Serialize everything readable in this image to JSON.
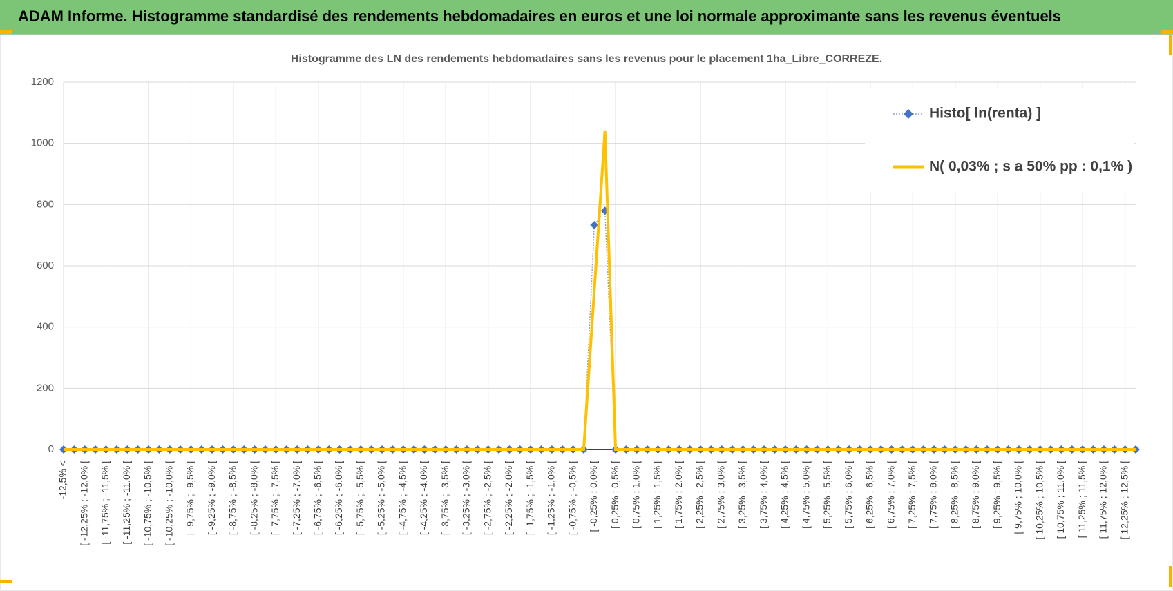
{
  "header": {
    "title": "ADAM Informe. Histogramme standardisé des rendements hebdomadaires en euros et une loi normale approximante sans les revenus éventuels"
  },
  "chart_data": {
    "type": "line",
    "title": "Histogramme des LN des rendements hebdomadaires sans les revenus pour le placement 1ha_Libre_CORREZE.",
    "categories": [
      "-12,5% <",
      null,
      "[ -12,25% ; -12,0% [",
      null,
      "[ -11,75% ; -11,5% [",
      null,
      "[ -11,25% ; -11,0% [",
      null,
      "[ -10,75% ; -10,5% [",
      null,
      "[ -10,25% ; -10,0% [",
      null,
      "[ -9,75% ; -9,5% [",
      null,
      "[ -9,25% ; -9,0% [",
      null,
      "[ -8,75% ; -8,5% [",
      null,
      "[ -8,25% ; -8,0% [",
      null,
      "[ -7,75% ; -7,5% [",
      null,
      "[ -7,25% ; -7,0% [",
      null,
      "[ -6,75% ; -6,5% [",
      null,
      "[ -6,25% ; -6,0% [",
      null,
      "[ -5,75% ; -5,5% [",
      null,
      "[ -5,25% ; -5,0% [",
      null,
      "[ -4,75% ; -4,5% [",
      null,
      "[ -4,25% ; -4,0% [",
      null,
      "[ -3,75% ; -3,5% [",
      null,
      "[ -3,25% ; -3,0% [",
      null,
      "[ -2,75% ; -2,5% [",
      null,
      "[ -2,25% ; -2,0% [",
      null,
      "[ -1,75% ; -1,5% [",
      null,
      "[ -1,25% ; -1,0% [",
      null,
      "[ -0,75% ; -0,5% [",
      null,
      "[ -0,25% ; 0,0% [",
      null,
      "[ 0,25% ; 0,5% [",
      null,
      "[ 0,75% ; 1,0% [",
      null,
      "[ 1,25% ; 1,5% [",
      null,
      "[ 1,75% ; 2,0% [",
      null,
      "[ 2,25% ; 2,5% [",
      null,
      "[ 2,75% ; 3,0% [",
      null,
      "[ 3,25% ; 3,5% [",
      null,
      "[ 3,75% ; 4,0% [",
      null,
      "[ 4,25% ; 4,5% [",
      null,
      "[ 4,75% ; 5,0% [",
      null,
      "[ 5,25% ; 5,5% [",
      null,
      "[ 5,75% ; 6,0% [",
      null,
      "[ 6,25% ; 6,5% [",
      null,
      "[ 6,75% ; 7,0% [",
      null,
      "[ 7,25% ; 7,5% [",
      null,
      "[ 7,75% ; 8,0% [",
      null,
      "[ 8,25% ; 8,5% [",
      null,
      "[ 8,75% ; 9,0% [",
      null,
      "[ 9,25% ; 9,5% [",
      null,
      "[ 9,75% ; 10,0% [",
      null,
      "[ 10,25% ; 10,5% [",
      null,
      "[ 10,75% ; 11,0% [",
      null,
      "[ 11,25% ; 11,5% [",
      null,
      "[ 11,75% ; 12,0% [",
      null,
      "[ 12,25% ; 12,5% [",
      null
    ],
    "series": [
      {
        "name": "Histo[ ln(renta) ]",
        "color": "#4472c4",
        "values": [
          0,
          0,
          0,
          0,
          0,
          0,
          0,
          0,
          0,
          0,
          0,
          0,
          0,
          0,
          0,
          0,
          0,
          0,
          0,
          0,
          0,
          0,
          0,
          0,
          0,
          0,
          0,
          0,
          0,
          0,
          0,
          0,
          0,
          0,
          0,
          0,
          0,
          0,
          0,
          0,
          0,
          0,
          0,
          0,
          0,
          0,
          0,
          0,
          0,
          0,
          733,
          780,
          0,
          0,
          0,
          0,
          0,
          0,
          0,
          0,
          0,
          0,
          0,
          0,
          0,
          0,
          0,
          0,
          0,
          0,
          0,
          0,
          0,
          0,
          0,
          0,
          0,
          0,
          0,
          0,
          0,
          0,
          0,
          0,
          0,
          0,
          0,
          0,
          0,
          0,
          0,
          0,
          0,
          0,
          0,
          0,
          0,
          0,
          0,
          0,
          0,
          0
        ]
      },
      {
        "name": "N( 0,03% ; s a 50% pp : 0,1% )",
        "color": "#ffc000",
        "values": [
          0,
          0,
          0,
          0,
          0,
          0,
          0,
          0,
          0,
          0,
          0,
          0,
          0,
          0,
          0,
          0,
          0,
          0,
          0,
          0,
          0,
          0,
          0,
          0,
          0,
          0,
          0,
          0,
          0,
          0,
          0,
          0,
          0,
          0,
          0,
          0,
          0,
          0,
          0,
          0,
          0,
          0,
          0,
          0,
          0,
          0,
          0,
          0,
          0,
          0,
          520,
          1040,
          0,
          0,
          0,
          0,
          0,
          0,
          0,
          0,
          0,
          0,
          0,
          0,
          0,
          0,
          0,
          0,
          0,
          0,
          0,
          0,
          0,
          0,
          0,
          0,
          0,
          0,
          0,
          0,
          0,
          0,
          0,
          0,
          0,
          0,
          0,
          0,
          0,
          0,
          0,
          0,
          0,
          0,
          0,
          0,
          0,
          0,
          0,
          0,
          0,
          0
        ]
      }
    ],
    "ylim": [
      0,
      1200
    ],
    "yticks": [
      0,
      200,
      400,
      600,
      800,
      1000,
      1200
    ],
    "grid": true
  }
}
